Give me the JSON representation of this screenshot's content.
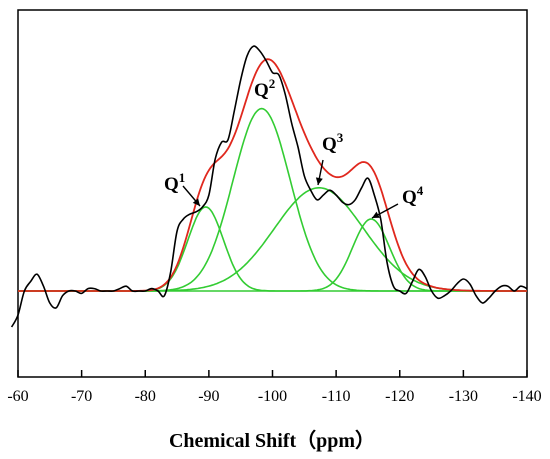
{
  "chart_data": {
    "type": "line",
    "title": "",
    "xlabel": "Chemical Shift（ppm）",
    "ylabel": "",
    "xlim": [
      -60,
      -140
    ],
    "x_reversed": true,
    "x_ticks": [
      -60,
      -70,
      -80,
      -90,
      -100,
      -110,
      -120,
      -130,
      -140
    ],
    "y_ticks_shown": false,
    "grid": false,
    "colors": {
      "experimental": "#000000",
      "fit": "#e0281e",
      "components": "#33cc33"
    },
    "peaks": [
      {
        "label": "Q",
        "sup": "1",
        "center": -89.5,
        "height": 0.35,
        "sigma": 2.8
      },
      {
        "label": "Q",
        "sup": "2",
        "center": -98.3,
        "height": 0.76,
        "sigma": 4.5
      },
      {
        "label": "Q",
        "sup": "3",
        "center": -107.3,
        "height": 0.43,
        "sigma": 7.0
      },
      {
        "label": "Q",
        "sup": "4",
        "center": -115.5,
        "height": 0.3,
        "sigma": 2.9
      }
    ],
    "series": [
      {
        "key": "experimental",
        "x": [
          -59,
          -60,
          -61,
          -62,
          -63,
          -64,
          -65,
          -66,
          -67,
          -68,
          -69,
          -70,
          -71,
          -72,
          -73,
          -74,
          -75,
          -76,
          -77,
          -78,
          -79,
          -80,
          -81,
          -82,
          -83,
          -84,
          -85,
          -86,
          -87,
          -88,
          -89,
          -90,
          -91,
          -92,
          -93,
          -94,
          -95,
          -96,
          -97,
          -98,
          -99,
          -100,
          -101,
          -102,
          -103,
          -104,
          -105,
          -106,
          -107,
          -108,
          -109,
          -110,
          -111,
          -112,
          -113,
          -114,
          -115,
          -116,
          -117,
          -118,
          -119,
          -120,
          -121,
          -122,
          -123,
          -124,
          -125,
          -126,
          -127,
          -128,
          -129,
          -130,
          -131,
          -132,
          -133,
          -134,
          -135,
          -136,
          -137,
          -138,
          -139,
          -140
        ],
        "y": [
          -0.15,
          -0.1,
          0.0,
          0.04,
          0.07,
          0.02,
          -0.05,
          -0.07,
          -0.02,
          0.0,
          0.0,
          -0.01,
          0.01,
          0.01,
          0.0,
          0.0,
          0.0,
          0.01,
          0.02,
          0.0,
          0.0,
          0.0,
          0.01,
          0.0,
          -0.02,
          0.08,
          0.25,
          0.3,
          0.32,
          0.33,
          0.35,
          0.4,
          0.55,
          0.62,
          0.63,
          0.75,
          0.88,
          0.98,
          1.02,
          1.0,
          0.96,
          0.91,
          0.9,
          0.82,
          0.7,
          0.6,
          0.48,
          0.42,
          0.38,
          0.4,
          0.42,
          0.4,
          0.37,
          0.36,
          0.38,
          0.43,
          0.47,
          0.4,
          0.3,
          0.12,
          0.02,
          0.0,
          -0.01,
          0.04,
          0.09,
          0.06,
          0.0,
          -0.03,
          -0.02,
          0.0,
          0.03,
          0.05,
          0.03,
          -0.02,
          -0.05,
          -0.03,
          0.0,
          0.02,
          0.02,
          0.0,
          0.02,
          0.01
        ]
      },
      {
        "key": "fit",
        "name": ""
      },
      {
        "key": "components",
        "name": ""
      }
    ]
  }
}
